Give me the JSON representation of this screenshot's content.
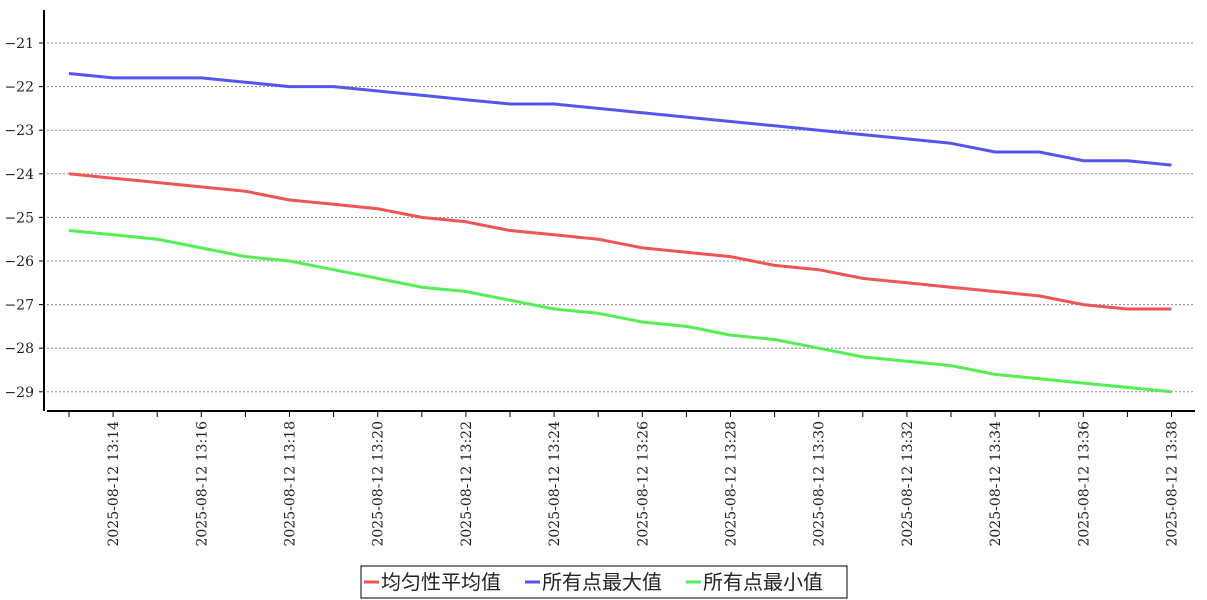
{
  "chart_data": {
    "type": "line",
    "title": "",
    "xlabel": "",
    "ylabel": "",
    "ylim": [
      -29.4,
      -20.3
    ],
    "yticks": [
      "-21",
      "-22",
      "-23",
      "-24",
      "-25",
      "-26",
      "-27",
      "-28",
      "-29"
    ],
    "grid": "horizontal dotted",
    "legend_placement": "bottom",
    "x": [
      "2025-08-12 13:13",
      "2025-08-12 13:14",
      "2025-08-12 13:15",
      "2025-08-12 13:16",
      "2025-08-12 13:17",
      "2025-08-12 13:18",
      "2025-08-12 13:19",
      "2025-08-12 13:20",
      "2025-08-12 13:21",
      "2025-08-12 13:22",
      "2025-08-12 13:23",
      "2025-08-12 13:24",
      "2025-08-12 13:25",
      "2025-08-12 13:26",
      "2025-08-12 13:27",
      "2025-08-12 13:28",
      "2025-08-12 13:29",
      "2025-08-12 13:30",
      "2025-08-12 13:31",
      "2025-08-12 13:32",
      "2025-08-12 13:33",
      "2025-08-12 13:34",
      "2025-08-12 13:35",
      "2025-08-12 13:36",
      "2025-08-12 13:37",
      "2025-08-12 13:38"
    ],
    "xticks": [
      "2025-08-12 13:14",
      "2025-08-12 13:16",
      "2025-08-12 13:18",
      "2025-08-12 13:20",
      "2025-08-12 13:22",
      "2025-08-12 13:24",
      "2025-08-12 13:26",
      "2025-08-12 13:28",
      "2025-08-12 13:30",
      "2025-08-12 13:32",
      "2025-08-12 13:34",
      "2025-08-12 13:36",
      "2025-08-12 13:38"
    ],
    "series": [
      {
        "name": "均匀性平均值",
        "color": "#ee5555",
        "values": [
          -24.0,
          -24.1,
          -24.2,
          -24.3,
          -24.4,
          -24.6,
          -24.7,
          -24.8,
          -25.0,
          -25.1,
          -25.3,
          -25.4,
          -25.5,
          -25.7,
          -25.8,
          -25.9,
          -26.1,
          -26.2,
          -26.4,
          -26.5,
          -26.6,
          -26.7,
          -26.8,
          -27.0,
          -27.1,
          -27.1
        ]
      },
      {
        "name": "所有点最大值",
        "color": "#5555ee",
        "values": [
          -21.7,
          -21.8,
          -21.8,
          -21.8,
          -21.9,
          -22.0,
          -22.0,
          -22.1,
          -22.2,
          -22.3,
          -22.4,
          -22.4,
          -22.5,
          -22.6,
          -22.7,
          -22.8,
          -22.9,
          -23.0,
          -23.1,
          -23.2,
          -23.3,
          -23.5,
          -23.5,
          -23.7,
          -23.7,
          -23.8
        ]
      },
      {
        "name": "所有点最小值",
        "color": "#55ee55",
        "values": [
          -25.3,
          -25.4,
          -25.5,
          -25.7,
          -25.9,
          -26.0,
          -26.2,
          -26.4,
          -26.6,
          -26.7,
          -26.9,
          -27.1,
          -27.2,
          -27.4,
          -27.5,
          -27.7,
          -27.8,
          -28.0,
          -28.2,
          -28.3,
          -28.4,
          -28.6,
          -28.7,
          -28.8,
          -28.9,
          -29.0
        ]
      }
    ]
  }
}
